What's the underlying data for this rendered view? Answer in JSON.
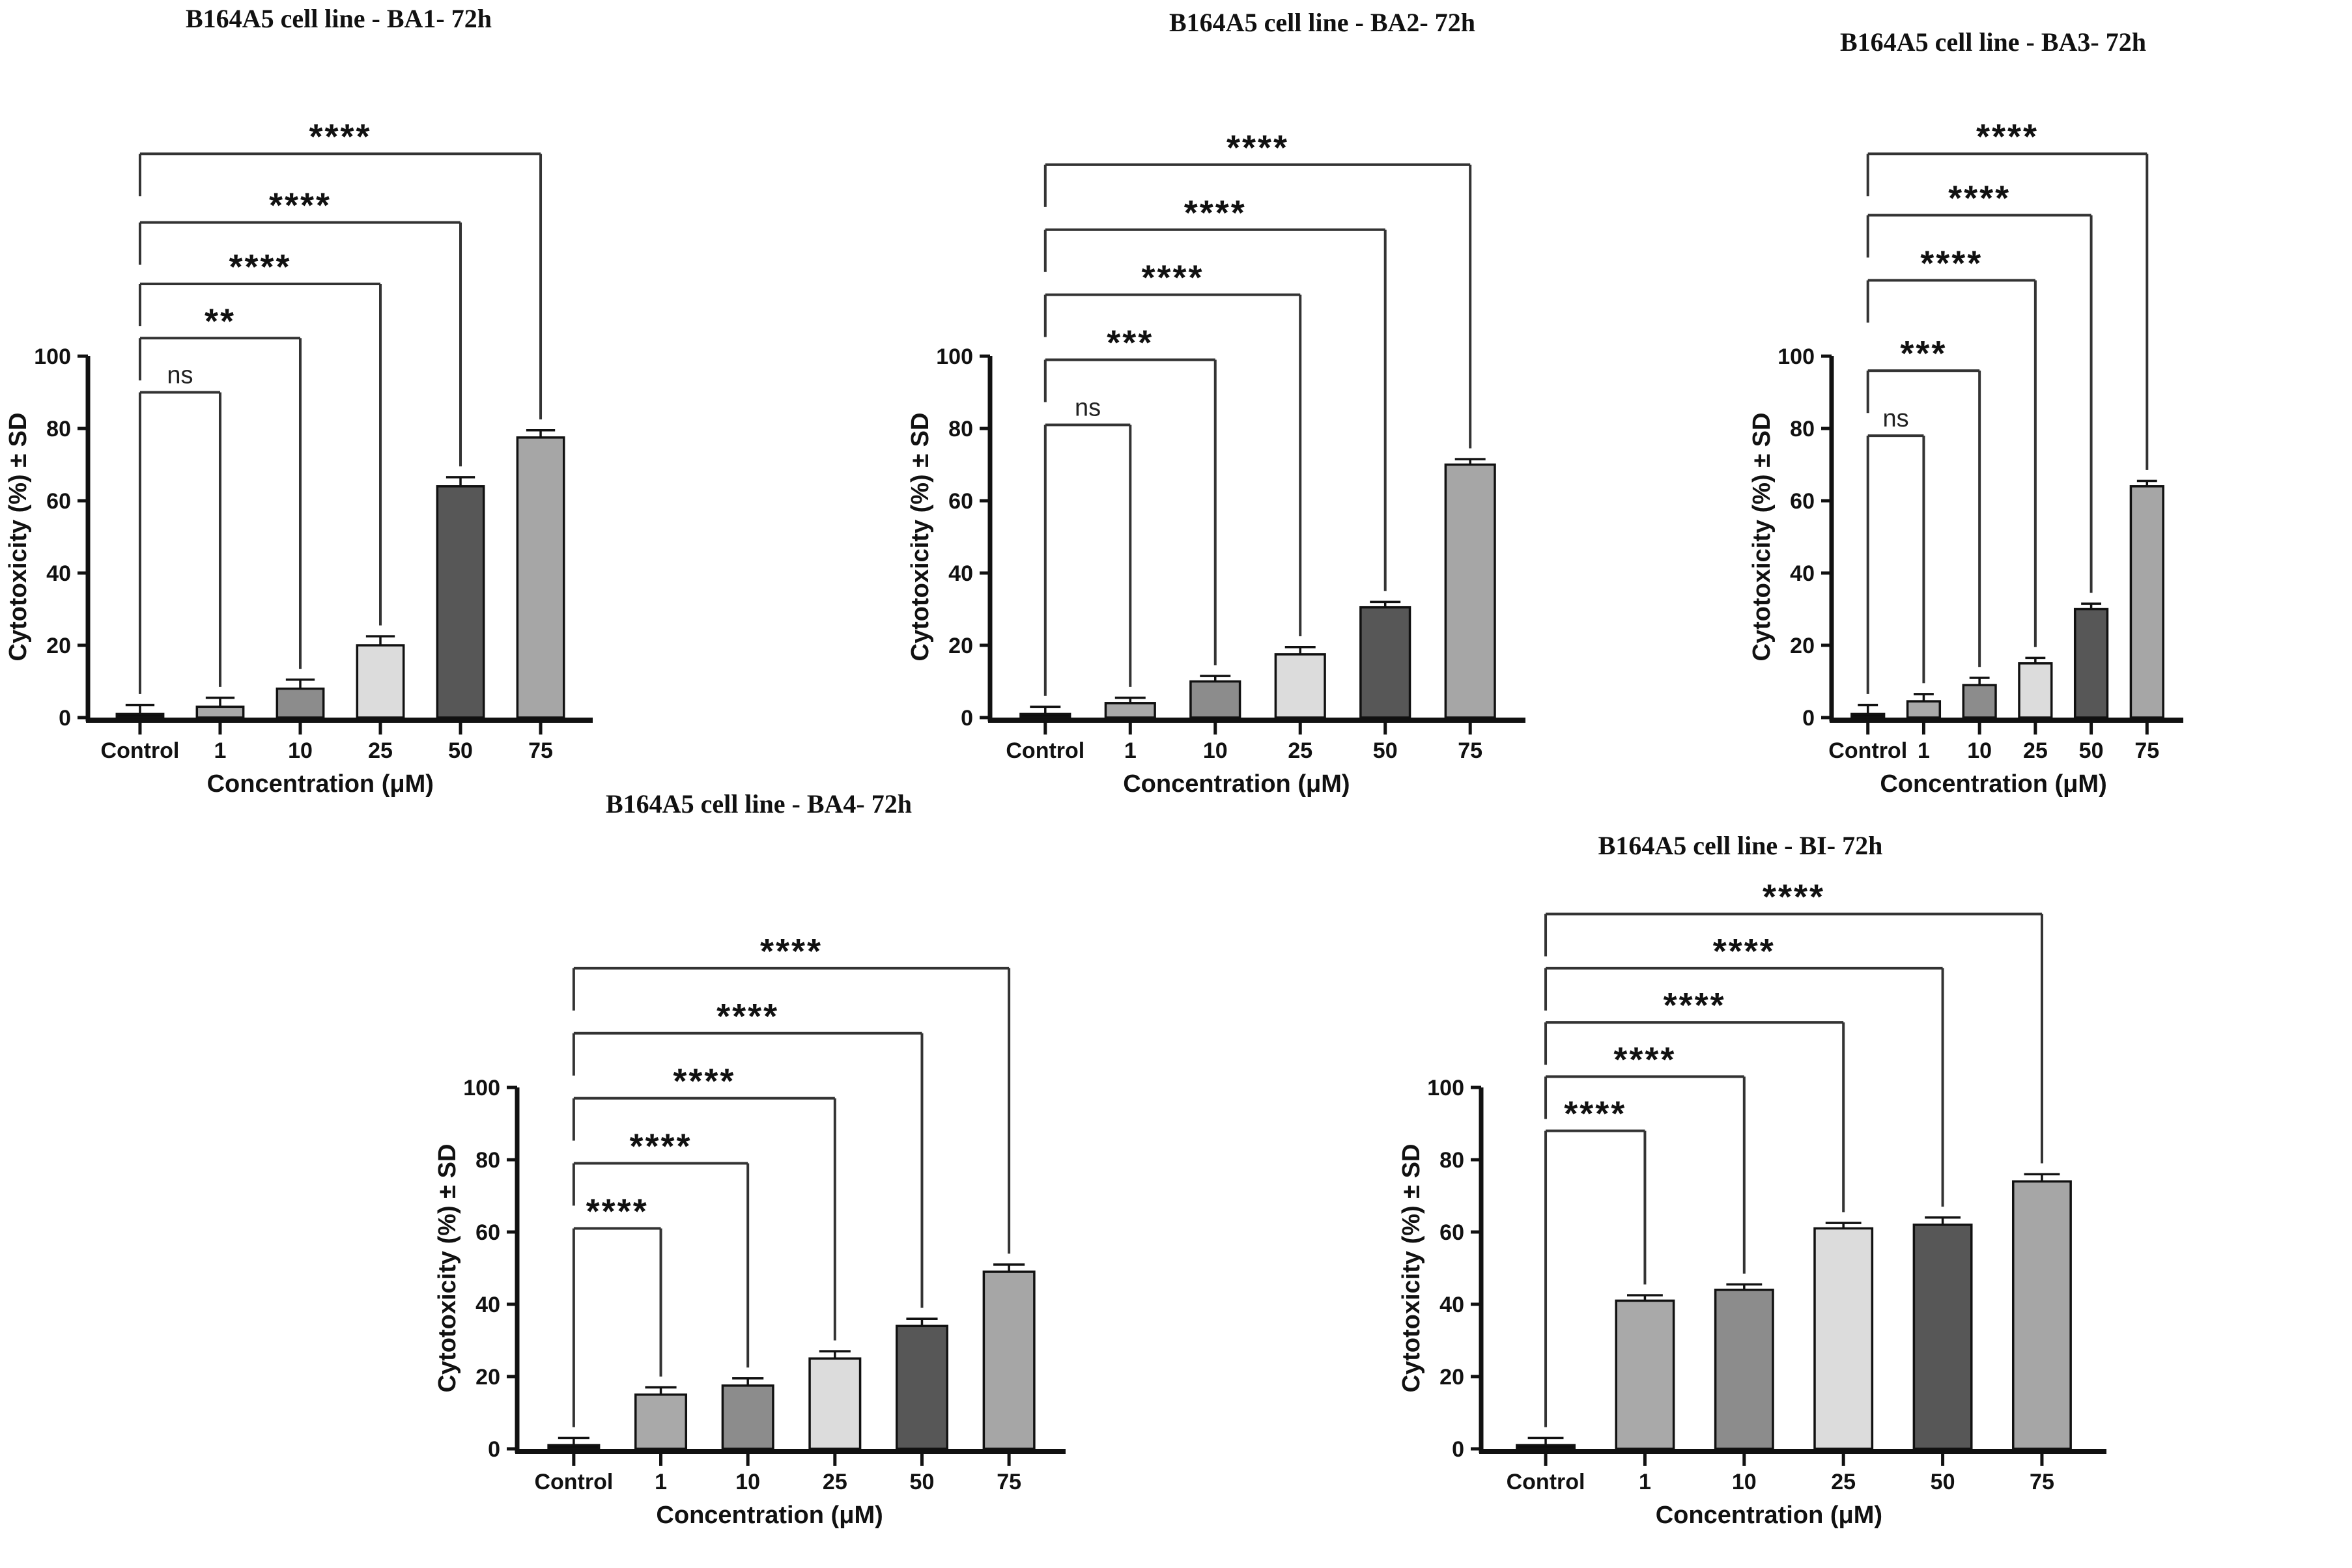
{
  "page": {
    "background": "#ffffff"
  },
  "shared": {
    "ylabel": "Cytotoxicity (%) ± SD",
    "xlabel": "Concentration (μM)",
    "categories": [
      "Control",
      "1",
      "10",
      "25",
      "50",
      "75"
    ],
    "yticks": [
      0,
      20,
      40,
      60,
      80,
      100
    ],
    "ylim": [
      0,
      100
    ],
    "bar_colors": [
      "#0d0d0d",
      "#a9a9a9",
      "#8c8c8c",
      "#dcdcdc",
      "#575757",
      "#a6a6a6"
    ],
    "axis_color": "#111111",
    "bracket_color": "#333333"
  },
  "chart_data": [
    {
      "type": "bar",
      "title": "B164A5 cell line - BA1- 72h",
      "xlabel": "Concentration (μM)",
      "ylabel": "Cytotoxicity (%) ± SD",
      "categories": [
        "Control",
        "1",
        "10",
        "25",
        "50",
        "75"
      ],
      "values": [
        1,
        3,
        8,
        20,
        64,
        77.5
      ],
      "errors": [
        2.5,
        2.5,
        2.5,
        2.5,
        2.5,
        2
      ],
      "ylim": [
        0,
        100
      ],
      "yticks": [
        0,
        20,
        40,
        60,
        80,
        100
      ],
      "grid": false,
      "legend": false,
      "significance": [
        {
          "comparison": "Control vs 1",
          "label": "ns",
          "height": 90
        },
        {
          "comparison": "Control vs 10",
          "label": "**",
          "height": 105
        },
        {
          "comparison": "Control vs 25",
          "label": "****",
          "height": 120
        },
        {
          "comparison": "Control vs 50",
          "label": "****",
          "height": 137
        },
        {
          "comparison": "Control vs 75",
          "label": "****",
          "height": 156
        }
      ]
    },
    {
      "type": "bar",
      "title": "B164A5 cell line - BA2- 72h",
      "xlabel": "Concentration (μM)",
      "ylabel": "Cytotoxicity (%) ± SD",
      "categories": [
        "Control",
        "1",
        "10",
        "25",
        "50",
        "75"
      ],
      "values": [
        1,
        4,
        10,
        17.5,
        30.5,
        70
      ],
      "errors": [
        2,
        1.5,
        1.5,
        2,
        1.5,
        1.5
      ],
      "ylim": [
        0,
        100
      ],
      "yticks": [
        0,
        20,
        40,
        60,
        80,
        100
      ],
      "grid": false,
      "legend": false,
      "significance": [
        {
          "comparison": "Control vs 1",
          "label": "ns",
          "height": 81
        },
        {
          "comparison": "Control vs 10",
          "label": "***",
          "height": 99
        },
        {
          "comparison": "Control vs 25",
          "label": "****",
          "height": 117
        },
        {
          "comparison": "Control vs 50",
          "label": "****",
          "height": 135
        },
        {
          "comparison": "Control vs 75",
          "label": "****",
          "height": 153
        }
      ]
    },
    {
      "type": "bar",
      "title": "B164A5 cell line - BA3- 72h",
      "xlabel": "Concentration (μM)",
      "ylabel": "Cytotoxicity (%) ± SD",
      "categories": [
        "Control",
        "1",
        "10",
        "25",
        "50",
        "75"
      ],
      "values": [
        1,
        4.5,
        9,
        15,
        30,
        64
      ],
      "errors": [
        2.5,
        2,
        2,
        1.5,
        1.5,
        1.5
      ],
      "ylim": [
        0,
        100
      ],
      "yticks": [
        0,
        20,
        40,
        60,
        80,
        100
      ],
      "grid": false,
      "legend": false,
      "significance": [
        {
          "comparison": "Control vs 1",
          "label": "ns",
          "height": 78
        },
        {
          "comparison": "Control vs 10",
          "label": "***",
          "height": 96
        },
        {
          "comparison": "Control vs 25",
          "label": "****",
          "height": 121
        },
        {
          "comparison": "Control vs 50",
          "label": "****",
          "height": 139
        },
        {
          "comparison": "Control vs 75",
          "label": "****",
          "height": 156
        }
      ]
    },
    {
      "type": "bar",
      "title": "B164A5 cell line - BA4- 72h",
      "xlabel": "Concentration (μM)",
      "ylabel": "Cytotoxicity (%) ± SD",
      "categories": [
        "Control",
        "1",
        "10",
        "25",
        "50",
        "75"
      ],
      "values": [
        1,
        15,
        17.5,
        25,
        34,
        49
      ],
      "errors": [
        2,
        2,
        2,
        2,
        2,
        2
      ],
      "ylim": [
        0,
        100
      ],
      "yticks": [
        0,
        20,
        40,
        60,
        80,
        100
      ],
      "grid": false,
      "legend": false,
      "significance": [
        {
          "comparison": "Control vs 1",
          "label": "****",
          "height": 61
        },
        {
          "comparison": "Control vs 10",
          "label": "****",
          "height": 79
        },
        {
          "comparison": "Control vs 25",
          "label": "****",
          "height": 97
        },
        {
          "comparison": "Control vs 50",
          "label": "****",
          "height": 115
        },
        {
          "comparison": "Control vs 75",
          "label": "****",
          "height": 133
        }
      ]
    },
    {
      "type": "bar",
      "title": "B164A5 cell line - BI- 72h",
      "xlabel": "Concentration (μM)",
      "ylabel": "Cytotoxicity (%) ± SD",
      "categories": [
        "Control",
        "1",
        "10",
        "25",
        "50",
        "75"
      ],
      "values": [
        1,
        41,
        44,
        61,
        62,
        74
      ],
      "errors": [
        2,
        1.5,
        1.5,
        1.5,
        2,
        2
      ],
      "ylim": [
        0,
        100
      ],
      "yticks": [
        0,
        20,
        40,
        60,
        80,
        100
      ],
      "grid": false,
      "legend": false,
      "significance": [
        {
          "comparison": "Control vs 1",
          "label": "****",
          "height": 88
        },
        {
          "comparison": "Control vs 10",
          "label": "****",
          "height": 103
        },
        {
          "comparison": "Control vs 25",
          "label": "****",
          "height": 118
        },
        {
          "comparison": "Control vs 50",
          "label": "****",
          "height": 133
        },
        {
          "comparison": "Control vs 75",
          "label": "****",
          "height": 148
        }
      ]
    }
  ]
}
